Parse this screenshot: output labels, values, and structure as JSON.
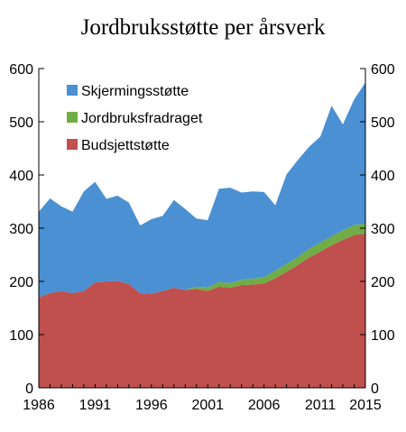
{
  "chart_data": {
    "type": "area",
    "stacked": true,
    "title": "Jordbruksstøtte per årsverk",
    "xlabel": "",
    "ylabel": "",
    "x": [
      1986,
      1987,
      1988,
      1989,
      1990,
      1991,
      1992,
      1993,
      1994,
      1995,
      1996,
      1997,
      1998,
      1999,
      2000,
      2001,
      2002,
      2003,
      2004,
      2005,
      2006,
      2007,
      2008,
      2009,
      2010,
      2011,
      2012,
      2013,
      2014,
      2015
    ],
    "x_ticks": [
      1986,
      1991,
      1996,
      2001,
      2006,
      2011,
      2015
    ],
    "y_ticks": [
      0,
      100,
      200,
      300,
      400,
      500,
      600
    ],
    "xlim": [
      1986,
      2015
    ],
    "ylim": [
      0,
      600
    ],
    "grid": false,
    "legend_position": "top-left",
    "series": [
      {
        "name": "Budsjettstøtte",
        "color": "#c0504d",
        "values": [
          170,
          178,
          182,
          178,
          182,
          198,
          200,
          201,
          195,
          178,
          177,
          182,
          188,
          184,
          186,
          182,
          190,
          188,
          193,
          194,
          196,
          206,
          218,
          231,
          245,
          256,
          268,
          278,
          287,
          290
        ]
      },
      {
        "name": "Jordbruksfradraget",
        "color": "#70ad47",
        "values": [
          0,
          0,
          0,
          0,
          0,
          0,
          0,
          0,
          0,
          0,
          0,
          0,
          0,
          0,
          4,
          7,
          9,
          9,
          10,
          11,
          12,
          14,
          15,
          15,
          16,
          17,
          17,
          18,
          19,
          19
        ]
      },
      {
        "name": "Skjermingsstøtte",
        "color": "#4a90d2",
        "values": [
          161,
          178,
          159,
          153,
          187,
          189,
          155,
          160,
          153,
          127,
          140,
          141,
          165,
          152,
          128,
          126,
          175,
          179,
          164,
          164,
          160,
          123,
          168,
          182,
          192,
          199,
          245,
          199,
          236,
          265
        ]
      }
    ],
    "legend_order": [
      "Skjermingsstøtte",
      "Jordbruksfradraget",
      "Budsjettstøtte"
    ]
  }
}
